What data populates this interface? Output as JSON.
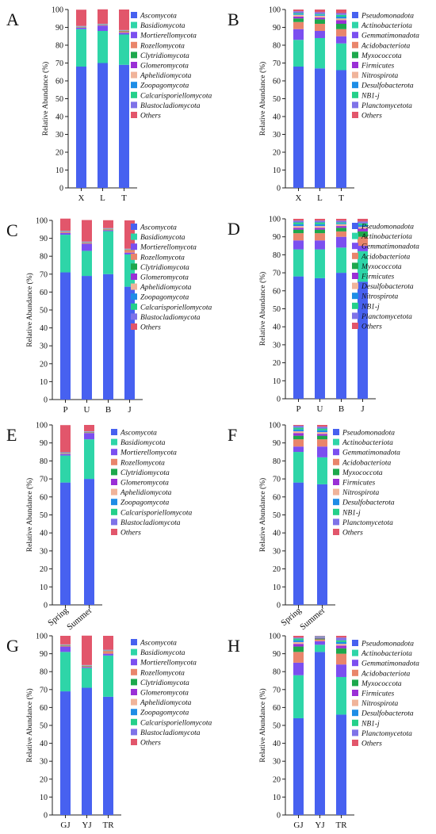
{
  "colors": {
    "fungi": [
      "#4761f0",
      "#2ed5a8",
      "#7b4ff0",
      "#e9856b",
      "#1da84c",
      "#9a2fd6",
      "#f0b49a",
      "#1d8de6",
      "#24d08a",
      "#7f72e8",
      "#e2566b"
    ],
    "bacteria": [
      "#4761f0",
      "#2ed5a8",
      "#7b4ff0",
      "#e9856b",
      "#1da84c",
      "#9a2fd6",
      "#f0b49a",
      "#1d8de6",
      "#24d08a",
      "#7f72e8",
      "#e2566b"
    ]
  },
  "chart_data": [
    {
      "panel": "A",
      "type": "bar",
      "stacked": true,
      "ylabel": "Relative Abundance (%)",
      "ylim": [
        0,
        100
      ],
      "yticks": [
        0,
        10,
        20,
        30,
        40,
        50,
        60,
        70,
        80,
        90,
        100
      ],
      "categories": [
        "X",
        "L",
        "T"
      ],
      "legend_group": "fungi",
      "series": [
        {
          "name": "Ascomycota",
          "values": [
            68,
            70,
            69
          ]
        },
        {
          "name": "Basidiomycota",
          "values": [
            21,
            18,
            17
          ]
        },
        {
          "name": "Mortierellomycota",
          "values": [
            0.8,
            3,
            1
          ]
        },
        {
          "name": "Rozellomycota",
          "values": [
            0.3,
            0.3,
            0.8
          ]
        },
        {
          "name": "Clytridiomycota",
          "values": [
            0.2,
            0.2,
            0.2
          ]
        },
        {
          "name": "Glomeromycota",
          "values": [
            0.1,
            0.1,
            0.1
          ]
        },
        {
          "name": "Aphelidiomycota",
          "values": [
            0.1,
            0.1,
            0.1
          ]
        },
        {
          "name": "Zoopagomycota",
          "values": [
            0.1,
            0.1,
            0.1
          ]
        },
        {
          "name": "Calcarisporiellomycota",
          "values": [
            0.1,
            0.1,
            0.1
          ]
        },
        {
          "name": "Blastocladiomycota",
          "values": [
            0.1,
            0.1,
            0.1
          ]
        },
        {
          "name": "Others",
          "values": [
            9.1,
            8.1,
            11.5
          ]
        }
      ]
    },
    {
      "panel": "B",
      "type": "bar",
      "stacked": true,
      "ylabel": "Relative Abundance (%)",
      "ylim": [
        0,
        100
      ],
      "yticks": [
        0,
        10,
        20,
        30,
        40,
        50,
        60,
        70,
        80,
        90,
        100
      ],
      "categories": [
        "X",
        "L",
        "T"
      ],
      "legend_group": "bacteria",
      "series": [
        {
          "name": "Pseudomonadota",
          "values": [
            68,
            67,
            66
          ]
        },
        {
          "name": "Actinobacteriota",
          "values": [
            15,
            17,
            15
          ]
        },
        {
          "name": "Gemmatimonadota",
          "values": [
            6,
            4,
            4
          ]
        },
        {
          "name": "Acidobacteriota",
          "values": [
            4,
            4,
            4
          ]
        },
        {
          "name": "Myxococcota",
          "values": [
            2,
            2.5,
            3
          ]
        },
        {
          "name": "Firmicutes",
          "values": [
            1,
            1,
            2
          ]
        },
        {
          "name": "Nitrospirota",
          "values": [
            1,
            1,
            1
          ]
        },
        {
          "name": "Desulfobacterota",
          "values": [
            0.5,
            0.5,
            1
          ]
        },
        {
          "name": "NB1-j",
          "values": [
            0.5,
            0.5,
            1
          ]
        },
        {
          "name": "Planctomycetota",
          "values": [
            1,
            1,
            1
          ]
        },
        {
          "name": "Others",
          "values": [
            1,
            1.5,
            2
          ]
        }
      ]
    },
    {
      "panel": "C",
      "type": "bar",
      "stacked": true,
      "ylabel": "Relative Abundance (%)",
      "ylim": [
        0,
        100
      ],
      "yticks": [
        0,
        10,
        20,
        30,
        40,
        50,
        60,
        70,
        80,
        90,
        100
      ],
      "categories": [
        "P",
        "U",
        "B",
        "J"
      ],
      "legend_group": "fungi",
      "series": [
        {
          "name": "Ascomycota",
          "values": [
            71,
            69,
            70,
            63
          ]
        },
        {
          "name": "Basidiomycota",
          "values": [
            21,
            14,
            24,
            18
          ]
        },
        {
          "name": "Mortierellomycota",
          "values": [
            1,
            4,
            0.5,
            1
          ]
        },
        {
          "name": "Rozellomycota",
          "values": [
            0.5,
            0.5,
            0.5,
            1.5
          ]
        },
        {
          "name": "Clytridiomycota",
          "values": [
            0.2,
            0.2,
            0.2,
            0.2
          ]
        },
        {
          "name": "Glomeromycota",
          "values": [
            0.1,
            0.1,
            0.1,
            0.1
          ]
        },
        {
          "name": "Aphelidiomycota",
          "values": [
            0.1,
            0.1,
            0.1,
            0.1
          ]
        },
        {
          "name": "Zoopagomycota",
          "values": [
            0.1,
            0.1,
            0.1,
            0.1
          ]
        },
        {
          "name": "Calcarisporiellomycota",
          "values": [
            0.1,
            0.1,
            0.1,
            0.1
          ]
        },
        {
          "name": "Blastocladiomycota",
          "values": [
            0.1,
            0.1,
            0.1,
            0.1
          ]
        },
        {
          "name": "Others",
          "values": [
            6.8,
            12,
            4.4,
            15.8
          ]
        }
      ]
    },
    {
      "panel": "D",
      "type": "bar",
      "stacked": true,
      "ylabel": "Relative Abundance (%)",
      "ylim": [
        0,
        100
      ],
      "yticks": [
        0,
        10,
        20,
        30,
        40,
        50,
        60,
        70,
        80,
        90,
        100
      ],
      "categories": [
        "P",
        "U",
        "B",
        "J"
      ],
      "legend_group": "bacteria",
      "series": [
        {
          "name": "Pseudomonadota",
          "values": [
            68,
            67,
            70,
            65
          ]
        },
        {
          "name": "Actinobacteriota",
          "values": [
            15,
            16,
            14,
            17
          ]
        },
        {
          "name": "Gemmatimonadota",
          "values": [
            5,
            5,
            6,
            3
          ]
        },
        {
          "name": "Acidobacteriota",
          "values": [
            4,
            4,
            3,
            5
          ]
        },
        {
          "name": "Myxococcota",
          "values": [
            2,
            2,
            2,
            3
          ]
        },
        {
          "name": "Firmicutes",
          "values": [
            1,
            1,
            1,
            1.5
          ]
        },
        {
          "name": "Desulfobacterota",
          "values": [
            1,
            1,
            1,
            1
          ]
        },
        {
          "name": "Nitrospirota",
          "values": [
            1,
            1,
            0.5,
            1
          ]
        },
        {
          "name": "NB1-j",
          "values": [
            1,
            1,
            0.5,
            1
          ]
        },
        {
          "name": "Planctomycetota",
          "values": [
            1,
            1,
            1,
            1
          ]
        },
        {
          "name": "Others",
          "values": [
            1,
            1,
            1,
            1.5
          ]
        }
      ]
    },
    {
      "panel": "E",
      "type": "bar",
      "stacked": true,
      "ylabel": "Relative Abundance (%)",
      "ylim": [
        0,
        100
      ],
      "yticks": [
        0,
        10,
        20,
        30,
        40,
        50,
        60,
        70,
        80,
        90,
        100
      ],
      "categories": [
        "Spring",
        "Summer"
      ],
      "rotate_xticks": true,
      "legend_group": "fungi",
      "series": [
        {
          "name": "Ascomycota",
          "values": [
            68,
            70
          ]
        },
        {
          "name": "Basidiomycota",
          "values": [
            15,
            22
          ]
        },
        {
          "name": "Mortierellomycota",
          "values": [
            0.8,
            3.5
          ]
        },
        {
          "name": "Rozellomycota",
          "values": [
            0.3,
            0.3
          ]
        },
        {
          "name": "Clytridiomycota",
          "values": [
            0.2,
            0.2
          ]
        },
        {
          "name": "Glomeromycota",
          "values": [
            0.1,
            0.1
          ]
        },
        {
          "name": "Aphelidiomycota",
          "values": [
            0.1,
            0.1
          ]
        },
        {
          "name": "Zoopagomycota",
          "values": [
            0.1,
            0.1
          ]
        },
        {
          "name": "Calcarisporiellomycota",
          "values": [
            0.1,
            0.1
          ]
        },
        {
          "name": "Blastocladiomycota",
          "values": [
            0.1,
            0.1
          ]
        },
        {
          "name": "Others",
          "values": [
            15.1,
            3.5
          ]
        }
      ]
    },
    {
      "panel": "F",
      "type": "bar",
      "stacked": true,
      "ylabel": "Relative Abundance (%)",
      "ylim": [
        0,
        100
      ],
      "yticks": [
        0,
        10,
        20,
        30,
        40,
        50,
        60,
        70,
        80,
        90,
        100
      ],
      "categories": [
        "Spring",
        "Summer"
      ],
      "rotate_xticks": true,
      "legend_group": "bacteria",
      "series": [
        {
          "name": "Pseudomonadota",
          "values": [
            68,
            67
          ]
        },
        {
          "name": "Actinobacteriota",
          "values": [
            17,
            15
          ]
        },
        {
          "name": "Gemmatimonadota",
          "values": [
            3,
            6
          ]
        },
        {
          "name": "Acidobacteriota",
          "values": [
            4,
            4
          ]
        },
        {
          "name": "Myxococcota",
          "values": [
            2,
            2
          ]
        },
        {
          "name": "Firmicutes",
          "values": [
            1.5,
            1
          ]
        },
        {
          "name": "Nitrospirota",
          "values": [
            1,
            1
          ]
        },
        {
          "name": "Desulfobacterota",
          "values": [
            1,
            1
          ]
        },
        {
          "name": "NB1-j",
          "values": [
            1,
            1
          ]
        },
        {
          "name": "Planctomycetota",
          "values": [
            1,
            1
          ]
        },
        {
          "name": "Others",
          "values": [
            0.5,
            1
          ]
        }
      ]
    },
    {
      "panel": "G",
      "type": "bar",
      "stacked": true,
      "ylabel": "Relative Abundance (%)",
      "ylim": [
        0,
        100
      ],
      "yticks": [
        0,
        10,
        20,
        30,
        40,
        50,
        60,
        70,
        80,
        90,
        100
      ],
      "categories": [
        "GJ",
        "YJ",
        "TR"
      ],
      "legend_group": "fungi",
      "series": [
        {
          "name": "Ascomycota",
          "values": [
            69,
            71,
            66
          ]
        },
        {
          "name": "Basidiomycota",
          "values": [
            22,
            11,
            23
          ]
        },
        {
          "name": "Mortierellomycota",
          "values": [
            3,
            0.5,
            1
          ]
        },
        {
          "name": "Rozellomycota",
          "values": [
            0.5,
            0.5,
            1.5
          ]
        },
        {
          "name": "Clytridiomycota",
          "values": [
            0.2,
            0.2,
            0.2
          ]
        },
        {
          "name": "Glomeromycota",
          "values": [
            0.1,
            0.1,
            0.1
          ]
        },
        {
          "name": "Aphelidiomycota",
          "values": [
            0.1,
            0.1,
            0.1
          ]
        },
        {
          "name": "Zoopagomycota",
          "values": [
            0.1,
            0.1,
            0.1
          ]
        },
        {
          "name": "Calcarisporiellomycota",
          "values": [
            0.1,
            0.1,
            0.1
          ]
        },
        {
          "name": "Blastocladiomycota",
          "values": [
            0.1,
            0.1,
            0.1
          ]
        },
        {
          "name": "Others",
          "values": [
            4.8,
            16.4,
            7.8
          ]
        }
      ]
    },
    {
      "panel": "H",
      "type": "bar",
      "stacked": true,
      "ylabel": "Relative Abundance (%)",
      "ylim": [
        0,
        100
      ],
      "yticks": [
        0,
        10,
        20,
        30,
        40,
        50,
        60,
        70,
        80,
        90,
        100
      ],
      "categories": [
        "GJ",
        "YJ",
        "TR"
      ],
      "legend_group": "bacteria",
      "series": [
        {
          "name": "Pseudomonadota",
          "values": [
            54,
            91,
            56
          ]
        },
        {
          "name": "Actinobacteriota",
          "values": [
            24,
            4,
            21
          ]
        },
        {
          "name": "Gemmatimonadota",
          "values": [
            7,
            2,
            7
          ]
        },
        {
          "name": "Acidobacteriota",
          "values": [
            6,
            1,
            6
          ]
        },
        {
          "name": "Myxococcota",
          "values": [
            3,
            0.5,
            3
          ]
        },
        {
          "name": "Firmicutes",
          "values": [
            1.5,
            0.5,
            1.5
          ]
        },
        {
          "name": "Nitrospirota",
          "values": [
            1,
            0.2,
            1
          ]
        },
        {
          "name": "Desulfobacterota",
          "values": [
            1,
            0.2,
            1
          ]
        },
        {
          "name": "NB1-j",
          "values": [
            1,
            0.2,
            1
          ]
        },
        {
          "name": "Planctomycetota",
          "values": [
            0.5,
            0.2,
            1.5
          ]
        },
        {
          "name": "Others",
          "values": [
            1,
            0.2,
            1
          ]
        }
      ]
    }
  ]
}
